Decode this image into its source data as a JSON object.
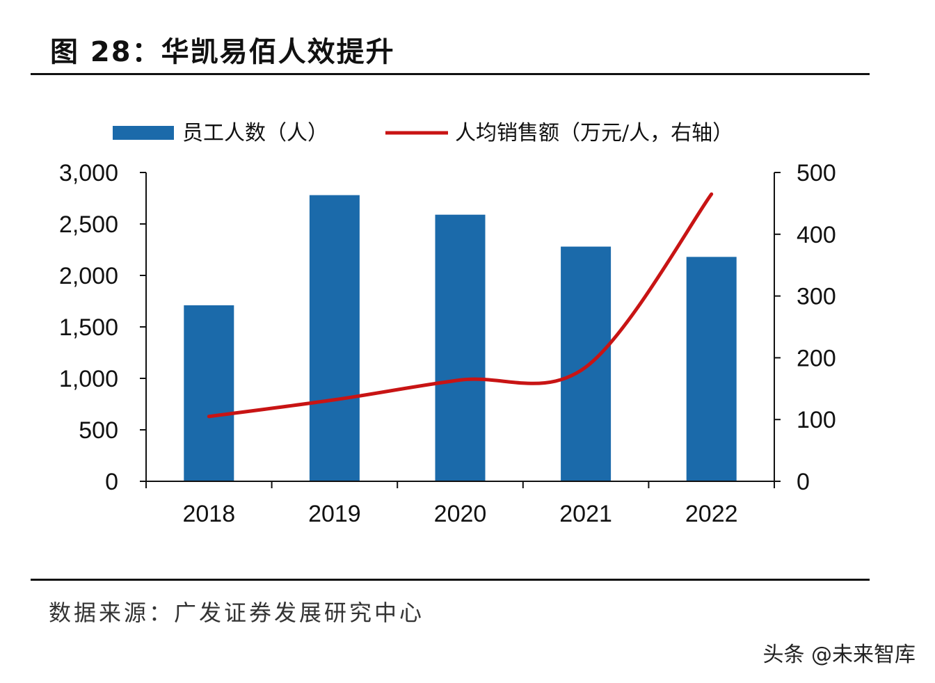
{
  "title": "图 28：华凯易佰人效提升",
  "source": "数据来源：广发证券发展研究中心",
  "watermark": "头条 @未来智库",
  "chart_data": {
    "type": "bar+line",
    "title": "图 28：华凯易佰人效提升",
    "categories": [
      "2018",
      "2019",
      "2020",
      "2021",
      "2022"
    ],
    "series": [
      {
        "name": "员工人数（人）",
        "type": "bar",
        "axis": "left",
        "color": "#1b6aaa",
        "values": [
          1710,
          2780,
          2590,
          2280,
          2180
        ]
      },
      {
        "name": "人均销售额（万元/人，右轴）",
        "type": "line",
        "axis": "right",
        "color": "#c81414",
        "values": [
          105,
          132,
          164,
          185,
          465
        ]
      }
    ],
    "yleft": {
      "lim": [
        0,
        3000
      ],
      "ticks": [
        "0",
        "500",
        "1,000",
        "1,500",
        "2,000",
        "2,500",
        "3,000"
      ]
    },
    "yright": {
      "lim": [
        0,
        500
      ],
      "ticks": [
        "0",
        "100",
        "200",
        "300",
        "400",
        "500"
      ]
    },
    "legend": "top",
    "grid": false
  }
}
